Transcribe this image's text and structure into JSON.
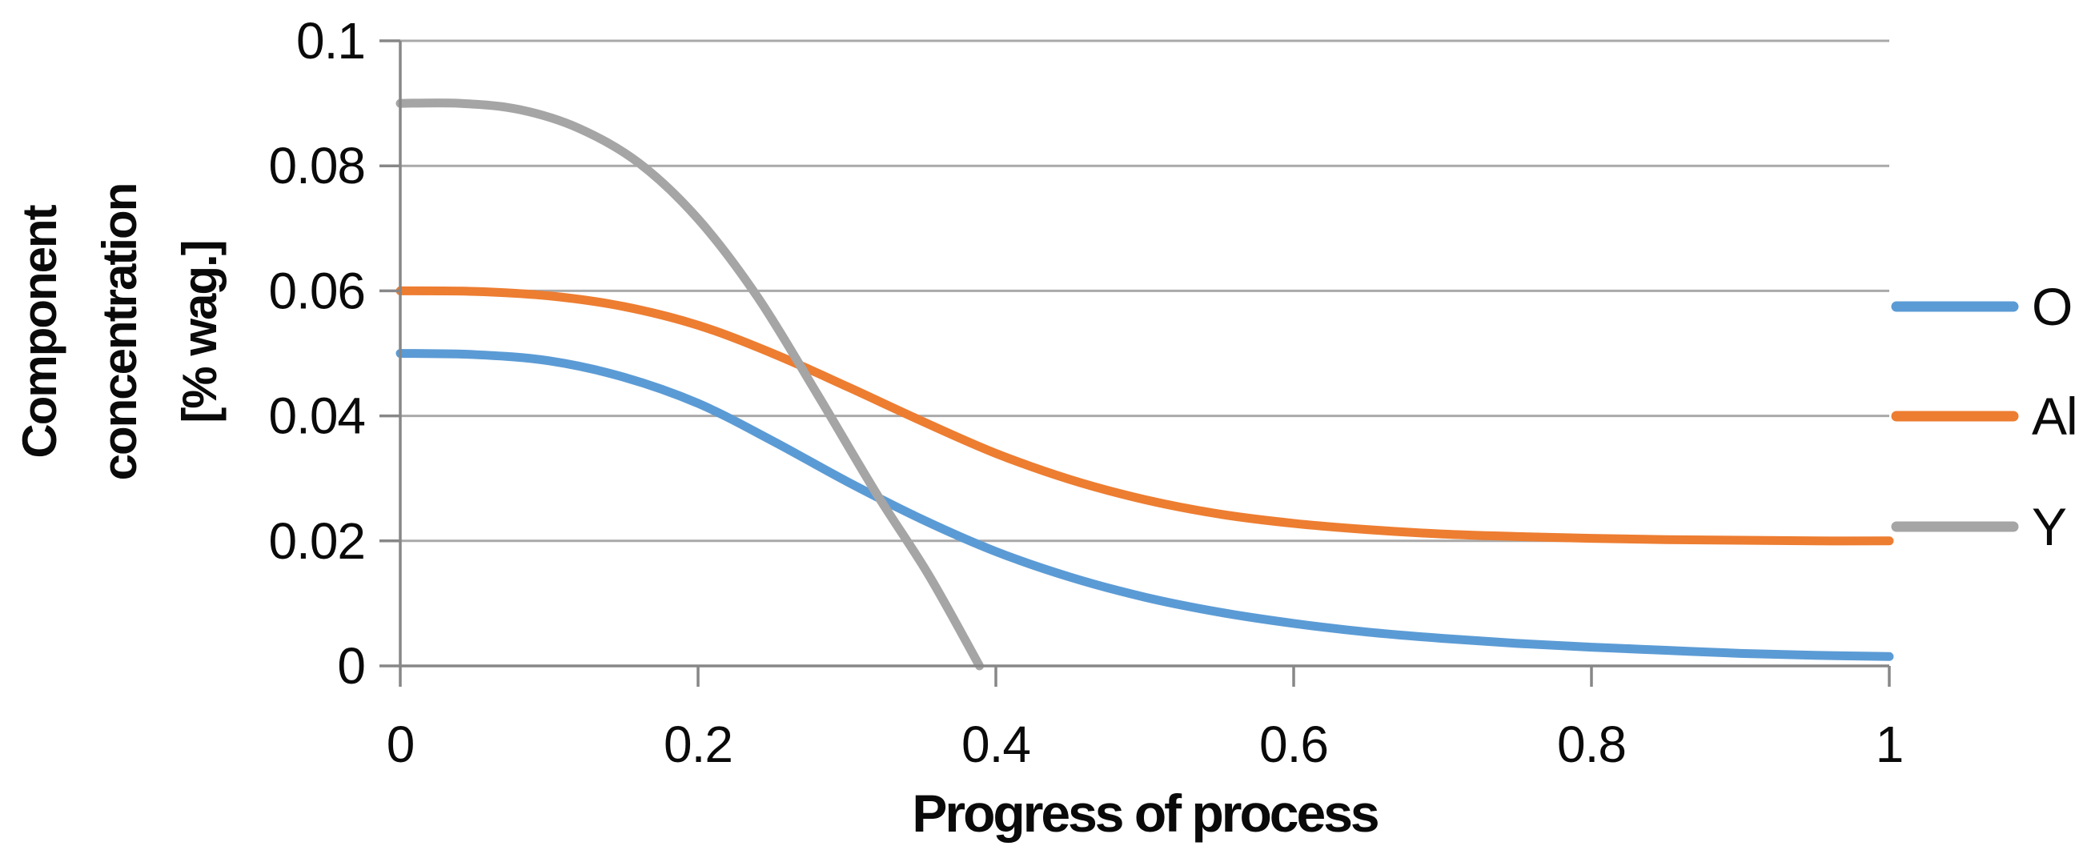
{
  "chart_data": {
    "type": "line",
    "title": "",
    "xlabel": "Progress of process",
    "ylabel": "Component concentration [% wag.]",
    "ylabel_lines": [
      "Component",
      "concentration",
      "[% wag.]"
    ],
    "xlim": [
      0,
      1
    ],
    "ylim": [
      0,
      0.1
    ],
    "grid": true,
    "legend_position": "right",
    "x_axis": {
      "ticks": [
        0,
        0.2,
        0.4,
        0.6,
        0.8,
        1
      ],
      "tick_labels": [
        "0",
        "0.2",
        "0.4",
        "0.6",
        "0.8",
        "1"
      ]
    },
    "y_axis": {
      "ticks": [
        0,
        0.02,
        0.04,
        0.06,
        0.08,
        0.1
      ],
      "tick_labels": [
        "0",
        "0.02",
        "0.04",
        "0.06",
        "0.08",
        "0.1"
      ]
    },
    "colors": {
      "gridline": "#A9A9A9",
      "axis_line": "#878787",
      "text": "#0a0a0a",
      "series_blue": "#5B9BD5",
      "series_orange": "#ED7D31",
      "series_gray": "#A5A5A5"
    },
    "series": [
      {
        "name": "O",
        "color": "#5B9BD5",
        "x": [
          0,
          0.05,
          0.1,
          0.15,
          0.2,
          0.25,
          0.3,
          0.35,
          0.4,
          0.45,
          0.5,
          0.55,
          0.6,
          0.65,
          0.7,
          0.75,
          0.8,
          0.85,
          0.9,
          0.95,
          1
        ],
        "y": [
          0.05,
          0.0498,
          0.0488,
          0.0462,
          0.042,
          0.036,
          0.0295,
          0.0235,
          0.0183,
          0.0142,
          0.011,
          0.0086,
          0.0068,
          0.0054,
          0.0044,
          0.0036,
          0.003,
          0.0025,
          0.002,
          0.0017,
          0.0015
        ]
      },
      {
        "name": "Al",
        "color": "#ED7D31",
        "x": [
          0,
          0.05,
          0.1,
          0.15,
          0.2,
          0.25,
          0.3,
          0.35,
          0.4,
          0.45,
          0.5,
          0.55,
          0.6,
          0.65,
          0.7,
          0.75,
          0.8,
          0.85,
          0.9,
          0.95,
          1
        ],
        "y": [
          0.06,
          0.0599,
          0.0592,
          0.0575,
          0.0545,
          0.05,
          0.0447,
          0.0392,
          0.034,
          0.0298,
          0.0266,
          0.0243,
          0.0228,
          0.0218,
          0.0211,
          0.0207,
          0.0204,
          0.0202,
          0.0201,
          0.02,
          0.02
        ]
      },
      {
        "name": "Y",
        "color": "#A5A5A5",
        "x": [
          0,
          0.04,
          0.08,
          0.12,
          0.16,
          0.2,
          0.24,
          0.28,
          0.32,
          0.355,
          0.389
        ],
        "y": [
          0.09,
          0.09,
          0.089,
          0.086,
          0.0805,
          0.0715,
          0.059,
          0.0435,
          0.0275,
          0.0145,
          0
        ]
      }
    ]
  }
}
